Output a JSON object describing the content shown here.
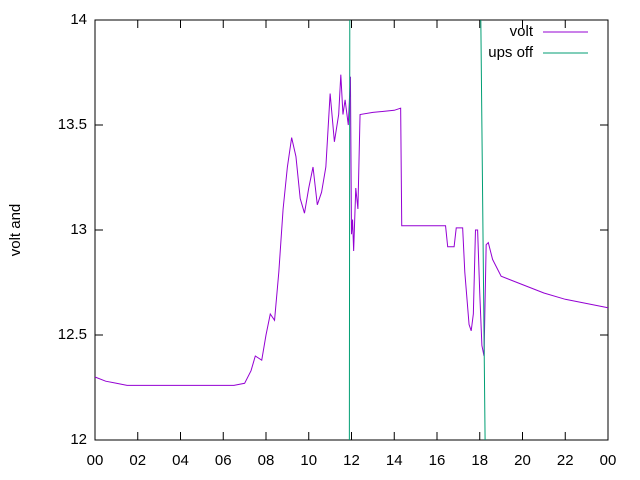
{
  "chart_data": {
    "type": "line",
    "y_label": "volt and",
    "xlim": [
      0,
      24
    ],
    "xticks": [
      {
        "value": 0,
        "label": "00"
      },
      {
        "value": 2,
        "label": "02"
      },
      {
        "value": 4,
        "label": "04"
      },
      {
        "value": 6,
        "label": "06"
      },
      {
        "value": 8,
        "label": "08"
      },
      10,
      12,
      14,
      16,
      18,
      20,
      22,
      {
        "value": 24,
        "label": "00"
      }
    ],
    "ylim": [
      12,
      14
    ],
    "yticks": [
      12,
      12.5,
      13,
      13.5,
      14
    ],
    "legend": "top-right",
    "series": [
      {
        "name": "volt",
        "color": "#9400d3",
        "x": [
          0,
          0.5,
          1,
          1.5,
          2,
          3,
          4,
          5,
          6,
          6.5,
          7,
          7.3,
          7.5,
          7.8,
          8,
          8.2,
          8.4,
          8.6,
          8.8,
          9,
          9.2,
          9.4,
          9.6,
          9.8,
          10,
          10.2,
          10.4,
          10.6,
          10.8,
          11,
          11.2,
          11.4,
          11.5,
          11.6,
          11.7,
          11.85,
          11.95,
          12,
          12.05,
          12.1,
          12.2,
          12.3,
          12.4,
          13,
          14,
          14.3,
          14.35,
          15,
          16,
          16.4,
          16.5,
          16.8,
          16.9,
          17.2,
          17.3,
          17.5,
          17.6,
          17.7,
          17.8,
          17.9,
          18,
          18.1,
          18.2,
          18.3,
          18.4,
          18.6,
          19,
          20,
          21,
          22,
          23,
          24
        ],
        "values": [
          12.3,
          12.28,
          12.27,
          12.26,
          12.26,
          12.26,
          12.26,
          12.26,
          12.26,
          12.26,
          12.27,
          12.33,
          12.4,
          12.38,
          12.5,
          12.6,
          12.57,
          12.8,
          13.1,
          13.3,
          13.44,
          13.35,
          13.15,
          13.08,
          13.2,
          13.3,
          13.12,
          13.18,
          13.3,
          13.65,
          13.42,
          13.55,
          13.74,
          13.55,
          13.62,
          13.5,
          13.73,
          12.98,
          13.05,
          12.9,
          13.2,
          13.1,
          13.55,
          13.56,
          13.57,
          13.58,
          13.02,
          13.02,
          13.02,
          13.02,
          12.92,
          12.92,
          13.01,
          13.01,
          12.8,
          12.55,
          12.52,
          12.6,
          13,
          13,
          12.7,
          12.45,
          12.4,
          12.93,
          12.94,
          12.86,
          12.78,
          12.74,
          12.7,
          12.67,
          12.65,
          12.63
        ]
      },
      {
        "name": "ups off",
        "color": "#009e73",
        "x": [
          11.9,
          11.92,
          12,
          18.05,
          18.25
        ],
        "values": [
          12,
          14,
          null,
          14,
          12
        ]
      }
    ]
  }
}
